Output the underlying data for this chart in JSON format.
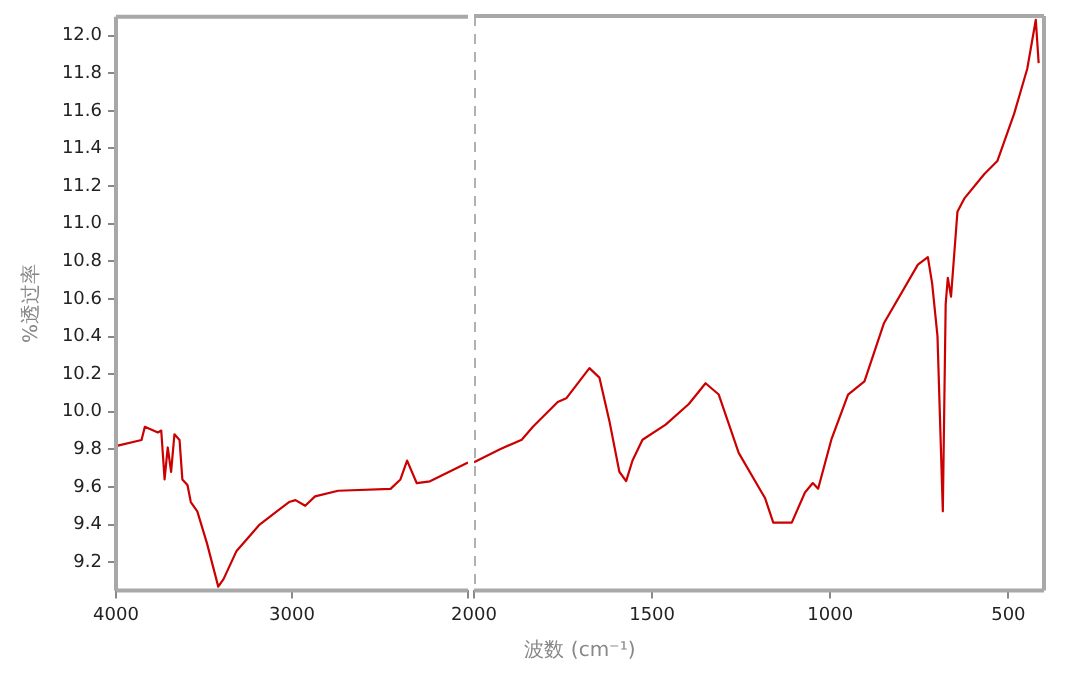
{
  "chart_data": [
    {
      "type": "line",
      "ylabel": "%透过率",
      "x": [
        3990,
        3855,
        3836,
        3762,
        3743,
        3724,
        3706,
        3687,
        3668,
        3639,
        3623,
        3594,
        3575,
        3538,
        3483,
        3419,
        3389,
        3315,
        3184,
        3017,
        2980,
        2925,
        2869,
        2738,
        2440,
        2384,
        2346,
        2291,
        2216,
        2000
      ],
      "series": [
        {
          "color": "#cc0000",
          "values": [
            9.82,
            9.85,
            9.92,
            9.89,
            9.9,
            9.64,
            9.81,
            9.68,
            9.88,
            9.85,
            9.64,
            9.61,
            9.52,
            9.47,
            9.3,
            9.07,
            9.11,
            9.26,
            9.4,
            9.52,
            9.53,
            9.5,
            9.55,
            9.58,
            9.59,
            9.64,
            9.74,
            9.62,
            9.63,
            9.73
          ]
        }
      ],
      "xlim": [
        4000,
        2000
      ],
      "xticks": [
        4000,
        3000,
        {
          "value": 2000,
          "label": null
        }
      ],
      "ylim": [
        9.05,
        12.1
      ],
      "yticks": [
        9.2,
        9.4,
        9.6,
        9.8,
        {
          "value": 10,
          "label": "10.0"
        },
        10.2,
        10.4,
        10.6,
        10.8,
        {
          "value": 11,
          "label": "11.0"
        },
        11.2,
        11.4,
        11.6,
        11.8,
        {
          "value": 12,
          "label": "12.0"
        }
      ],
      "grid": false,
      "legend": false,
      "marker": "none",
      "line_style": "solid"
    },
    {
      "type": "line",
      "xlabel": "波数 (cm⁻¹)",
      "x": [
        2000,
        1927,
        1866,
        1834,
        1765,
        1741,
        1676,
        1648,
        1620,
        1592,
        1573,
        1555,
        1527,
        1462,
        1397,
        1350,
        1313,
        1257,
        1183,
        1160,
        1108,
        1071,
        1049,
        1034,
        997,
        950,
        904,
        849,
        754,
        726,
        714,
        699,
        684,
        676,
        670,
        661,
        643,
        624,
        568,
        531,
        484,
        447,
        423,
        415
      ],
      "series": [
        {
          "color": "#cc0000",
          "values": [
            9.73,
            9.8,
            9.85,
            9.92,
            10.05,
            10.07,
            10.23,
            10.18,
            9.95,
            9.68,
            9.63,
            9.74,
            9.85,
            9.93,
            10.04,
            10.15,
            10.09,
            9.78,
            9.54,
            9.41,
            9.41,
            9.57,
            9.62,
            9.59,
            9.85,
            10.09,
            10.16,
            10.47,
            10.78,
            10.82,
            10.68,
            10.4,
            9.47,
            10.57,
            10.71,
            10.61,
            11.06,
            11.13,
            11.26,
            11.33,
            11.58,
            11.82,
            12.08,
            11.85
          ]
        }
      ],
      "xlim": [
        2000,
        400
      ],
      "xticks": [
        2000,
        1500,
        1000,
        500
      ],
      "ylim": [
        9.05,
        12.1
      ],
      "ref_lines": [
        {
          "axis": "x",
          "value": 2000,
          "color": "#b0b0b0",
          "line_style": "dashed"
        }
      ],
      "tick_labels": "x",
      "grid": false,
      "legend": false,
      "marker": "none",
      "line_style": "solid"
    }
  ]
}
